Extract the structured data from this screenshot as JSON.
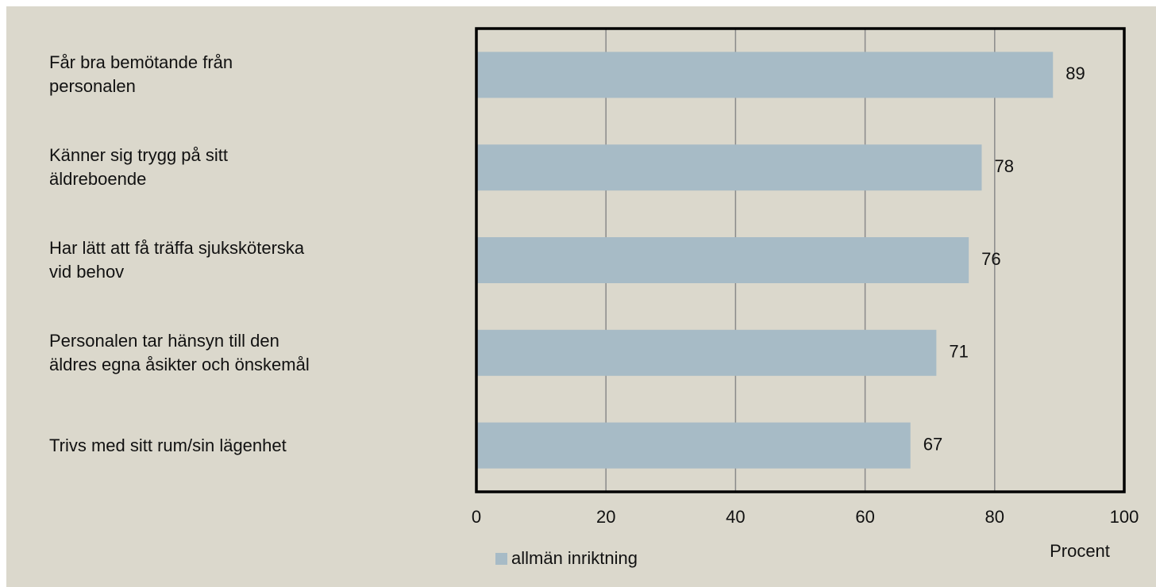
{
  "chart_data": {
    "type": "hbar",
    "categories": [
      "Får bra bemötande från\npersonalen",
      "Känner sig trygg på sitt\näldreboende",
      "Har lätt att få träffa sjuksköterska\nvid behov",
      "Personalen tar hänsyn till den\näldres egna åsikter och önskemål",
      "Trivs med sitt rum/sin lägenhet"
    ],
    "series": [
      {
        "name": "allmän inriktning",
        "color": "#a7bbc6",
        "values": [
          89,
          78,
          76,
          71,
          67
        ]
      }
    ],
    "xlim": [
      0,
      100
    ],
    "xticks": [
      0,
      20,
      40,
      60,
      80,
      100
    ],
    "x_label": "Procent",
    "grid": true
  }
}
